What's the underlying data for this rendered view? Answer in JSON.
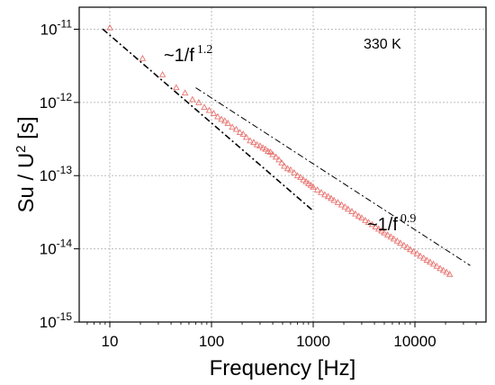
{
  "chart_data": {
    "type": "scatter",
    "xlabel": "Frequency [Hz]",
    "ylabel_parts": {
      "main": "Su / U",
      "sup": "2",
      "tail": " [s]"
    },
    "x_scale": "log",
    "y_scale": "log",
    "xlim": [
      5,
      50000
    ],
    "ylim": [
      1e-15,
      2e-11
    ],
    "x_ticks": [
      {
        "value": 10,
        "label": "10"
      },
      {
        "value": 100,
        "label": "100"
      },
      {
        "value": 1000,
        "label": "1000"
      },
      {
        "value": 10000,
        "label": "10000"
      }
    ],
    "y_ticks": [
      {
        "value": 1e-11,
        "label": "10",
        "exp": "-11"
      },
      {
        "value": 1e-12,
        "label": "10",
        "exp": "-12"
      },
      {
        "value": 1e-13,
        "label": "10",
        "exp": "-13"
      },
      {
        "value": 1e-14,
        "label": "10",
        "exp": "-14"
      },
      {
        "value": 1e-15,
        "label": "10",
        "exp": "-15"
      }
    ],
    "grid": true,
    "annotations": {
      "temperature": "330 K",
      "fit1": {
        "base": "~1/f",
        "exp": "1.2"
      },
      "fit2": {
        "base": "~1/f",
        "exp": "0.9"
      }
    },
    "fit_lines": [
      {
        "slope": -1.2,
        "x_range": [
          8.5,
          1000
        ],
        "y_at_1000": 3.3e-14
      },
      {
        "slope": -0.9,
        "x_range": [
          70,
          35000
        ],
        "y_at_1000": 1.45e-13
      }
    ],
    "series": [
      {
        "marker": "triangle",
        "color": "#e8736f",
        "points": [
          [
            10,
            1.05e-11
          ],
          [
            21,
            4e-12
          ],
          [
            33,
            2.4e-12
          ],
          [
            45,
            1.6e-12
          ],
          [
            55,
            1.35e-12
          ],
          [
            65,
            1.1e-12
          ],
          [
            75,
            1e-12
          ],
          [
            85,
            8.6e-13
          ],
          [
            95,
            7.8e-13
          ],
          [
            105,
            7.1e-13
          ],
          [
            115,
            6.4e-13
          ],
          [
            125,
            5.9e-13
          ],
          [
            135,
            5.6e-13
          ],
          [
            145,
            5.2e-13
          ],
          [
            160,
            4.6e-13
          ],
          [
            175,
            4.3e-13
          ],
          [
            190,
            3.9e-13
          ],
          [
            205,
            3.7e-13
          ],
          [
            220,
            3.35e-13
          ],
          [
            240,
            3e-13
          ],
          [
            260,
            2.85e-13
          ],
          [
            280,
            2.65e-13
          ],
          [
            300,
            2.55e-13
          ],
          [
            320,
            2.4e-13
          ],
          [
            340,
            2.3e-13
          ],
          [
            360,
            2.15e-13
          ],
          [
            380,
            2.1e-13
          ],
          [
            400,
            1.95e-13
          ],
          [
            430,
            1.8e-13
          ],
          [
            460,
            1.65e-13
          ],
          [
            490,
            1.5e-13
          ],
          [
            520,
            1.35e-13
          ],
          [
            560,
            1.25e-13
          ],
          [
            600,
            1.2e-13
          ],
          [
            650,
            1.1e-13
          ],
          [
            700,
            1e-13
          ],
          [
            750,
            9.5e-14
          ],
          [
            800,
            8.8e-14
          ],
          [
            850,
            8.3e-14
          ],
          [
            900,
            7.8e-14
          ],
          [
            950,
            7.4e-14
          ],
          [
            1000,
            7e-14
          ],
          [
            1100,
            6.4e-14
          ],
          [
            1200,
            5.9e-14
          ],
          [
            1300,
            5.5e-14
          ],
          [
            1400,
            5.2e-14
          ],
          [
            1500,
            4.9e-14
          ],
          [
            1600,
            4.6e-14
          ],
          [
            1750,
            4.3e-14
          ],
          [
            1900,
            4e-14
          ],
          [
            2050,
            3.75e-14
          ],
          [
            2200,
            3.5e-14
          ],
          [
            2400,
            3.25e-14
          ],
          [
            2600,
            3e-14
          ],
          [
            2800,
            2.8e-14
          ],
          [
            3000,
            2.65e-14
          ],
          [
            3250,
            2.45e-14
          ],
          [
            3500,
            2.3e-14
          ],
          [
            3800,
            2.15e-14
          ],
          [
            4100,
            2e-14
          ],
          [
            4400,
            1.87e-14
          ],
          [
            4700,
            1.76e-14
          ],
          [
            5000,
            1.66e-14
          ],
          [
            5400,
            1.55e-14
          ],
          [
            5800,
            1.46e-14
          ],
          [
            6200,
            1.37e-14
          ],
          [
            6700,
            1.28e-14
          ],
          [
            7200,
            1.2e-14
          ],
          [
            7800,
            1.12e-14
          ],
          [
            8400,
            1.05e-14
          ],
          [
            9000,
            9.8e-15
          ],
          [
            9700,
            9.2e-15
          ],
          [
            10500,
            8.6e-15
          ],
          [
            11300,
            8e-15
          ],
          [
            12200,
            7.5e-15
          ],
          [
            13100,
            7e-15
          ],
          [
            14100,
            6.6e-15
          ],
          [
            15200,
            6.2e-15
          ],
          [
            16400,
            5.8e-15
          ],
          [
            17700,
            5.4e-15
          ],
          [
            19000,
            5.1e-15
          ],
          [
            20500,
            4.8e-15
          ],
          [
            22000,
            4.5e-15
          ]
        ]
      }
    ]
  }
}
